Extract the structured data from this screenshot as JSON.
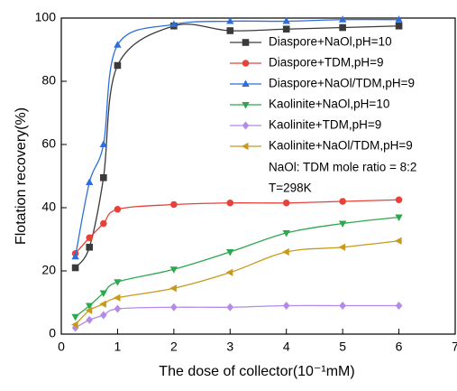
{
  "chart_data": {
    "type": "line",
    "x_label": "The dose of collector(10⁻¹mM)",
    "y_label": "Flotation recovery(%)",
    "x": [
      0.25,
      0.5,
      0.75,
      1,
      2,
      3,
      4,
      5,
      6
    ],
    "xlim": [
      0,
      7
    ],
    "xticks": [
      0,
      1,
      2,
      3,
      4,
      5,
      6,
      7
    ],
    "ylim": [
      0,
      100
    ],
    "yticks": [
      0,
      20,
      40,
      60,
      80,
      100
    ],
    "series": [
      {
        "name": "Diaspore+NaOl,pH=10",
        "color": "#3a3a3a",
        "marker": "square",
        "values": [
          21,
          27.5,
          49.5,
          85,
          97.5,
          96,
          96.5,
          97,
          97.5
        ]
      },
      {
        "name": "Diaspore+TDM,pH=9",
        "color": "#e8413a",
        "marker": "circle",
        "values": [
          25.5,
          30.5,
          35,
          39.5,
          41,
          41.5,
          41.5,
          42,
          42.5
        ]
      },
      {
        "name": "Diaspore+NaOl/TDM,pH=9",
        "color": "#2d6fd9",
        "marker": "triangle-up",
        "values": [
          24.5,
          48,
          60,
          91.5,
          98,
          99,
          99,
          99.5,
          99.5
        ]
      },
      {
        "name": "Kaolinite+NaOl,pH=10",
        "color": "#2ea84e",
        "marker": "triangle-down",
        "values": [
          5.5,
          9,
          13,
          16.5,
          20.5,
          26,
          32,
          35,
          37
        ]
      },
      {
        "name": "Kaolinite+TDM,pH=9",
        "color": "#b38be6",
        "marker": "diamond",
        "values": [
          2,
          4.5,
          6,
          8,
          8.5,
          8.5,
          9,
          9,
          9
        ]
      },
      {
        "name": "Kaolinite+NaOl/TDM,pH=9",
        "color": "#c79a1a",
        "marker": "triangle-left",
        "values": [
          3,
          7.5,
          9.5,
          11.5,
          14.5,
          19.5,
          26,
          27.5,
          29.5
        ]
      }
    ],
    "annotations": [
      "NaOl: TDM mole ratio = 8:2",
      "T=298K"
    ]
  }
}
